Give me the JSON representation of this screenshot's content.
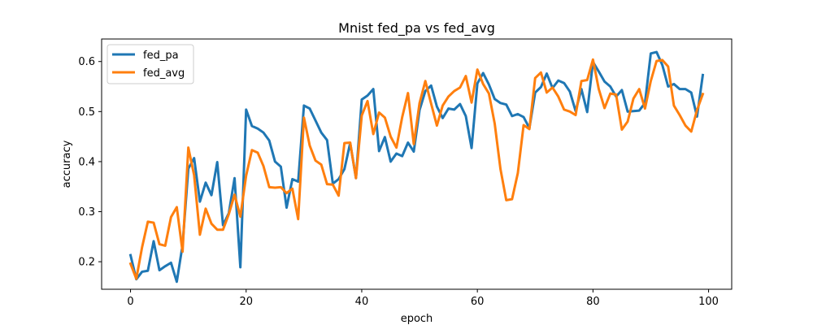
{
  "chart_data": {
    "type": "line",
    "title": "Mnist fed_pa vs fed_avg",
    "xlabel": "epoch",
    "ylabel": "accuracy",
    "xlim": [
      -5,
      104
    ],
    "ylim": [
      0.145,
      0.645
    ],
    "xticks": [
      0,
      20,
      40,
      60,
      80,
      100
    ],
    "yticks": [
      0.2,
      0.3,
      0.4,
      0.5,
      0.6
    ],
    "xtick_labels": [
      "0",
      "20",
      "40",
      "60",
      "80",
      "100"
    ],
    "ytick_labels": [
      "0.2",
      "0.3",
      "0.4",
      "0.5",
      "0.6"
    ],
    "grid": false,
    "legend_position": "top-left",
    "x": [
      0,
      1,
      2,
      3,
      4,
      5,
      6,
      7,
      8,
      9,
      10,
      11,
      12,
      13,
      14,
      15,
      16,
      17,
      18,
      19,
      20,
      21,
      22,
      23,
      24,
      25,
      26,
      27,
      28,
      29,
      30,
      31,
      32,
      33,
      34,
      35,
      36,
      37,
      38,
      39,
      40,
      41,
      42,
      43,
      44,
      45,
      46,
      47,
      48,
      49,
      50,
      51,
      52,
      53,
      54,
      55,
      56,
      57,
      58,
      59,
      60,
      61,
      62,
      63,
      64,
      65,
      66,
      67,
      68,
      69,
      70,
      71,
      72,
      73,
      74,
      75,
      76,
      77,
      78,
      79,
      80,
      81,
      82,
      83,
      84,
      85,
      86,
      87,
      88,
      89,
      90,
      91,
      92,
      93,
      94,
      95,
      96,
      97,
      98,
      99
    ],
    "series": [
      {
        "name": "fed_pa",
        "color": "#1f77b4",
        "values": [
          0.213,
          0.165,
          0.18,
          0.182,
          0.241,
          0.183,
          0.191,
          0.198,
          0.16,
          0.233,
          0.386,
          0.407,
          0.32,
          0.358,
          0.333,
          0.399,
          0.273,
          0.297,
          0.367,
          0.189,
          0.504,
          0.471,
          0.466,
          0.458,
          0.442,
          0.4,
          0.39,
          0.308,
          0.365,
          0.36,
          0.512,
          0.506,
          0.482,
          0.458,
          0.443,
          0.356,
          0.365,
          0.385,
          0.437,
          0.367,
          0.524,
          0.532,
          0.545,
          0.421,
          0.449,
          0.4,
          0.416,
          0.411,
          0.438,
          0.42,
          0.503,
          0.541,
          0.552,
          0.51,
          0.487,
          0.506,
          0.504,
          0.515,
          0.491,
          0.427,
          0.556,
          0.577,
          0.554,
          0.525,
          0.517,
          0.514,
          0.491,
          0.495,
          0.489,
          0.467,
          0.538,
          0.549,
          0.576,
          0.547,
          0.562,
          0.557,
          0.54,
          0.501,
          0.545,
          0.499,
          0.599,
          0.58,
          0.56,
          0.55,
          0.53,
          0.543,
          0.5,
          0.501,
          0.502,
          0.517,
          0.616,
          0.619,
          0.593,
          0.55,
          0.555,
          0.545,
          0.545,
          0.538,
          0.49,
          0.573
        ]
      },
      {
        "name": "fed_avg",
        "color": "#ff7f0e",
        "values": [
          0.196,
          0.166,
          0.229,
          0.28,
          0.278,
          0.235,
          0.232,
          0.289,
          0.309,
          0.22,
          0.428,
          0.373,
          0.254,
          0.306,
          0.276,
          0.264,
          0.264,
          0.295,
          0.334,
          0.29,
          0.372,
          0.423,
          0.418,
          0.391,
          0.349,
          0.348,
          0.349,
          0.337,
          0.346,
          0.285,
          0.488,
          0.432,
          0.402,
          0.394,
          0.355,
          0.354,
          0.332,
          0.437,
          0.438,
          0.367,
          0.492,
          0.521,
          0.455,
          0.498,
          0.488,
          0.45,
          0.428,
          0.489,
          0.537,
          0.435,
          0.517,
          0.561,
          0.516,
          0.472,
          0.512,
          0.53,
          0.541,
          0.548,
          0.571,
          0.518,
          0.584,
          0.555,
          0.536,
          0.476,
          0.385,
          0.323,
          0.325,
          0.377,
          0.473,
          0.465,
          0.567,
          0.578,
          0.538,
          0.548,
          0.53,
          0.504,
          0.5,
          0.493,
          0.561,
          0.563,
          0.604,
          0.545,
          0.507,
          0.536,
          0.534,
          0.464,
          0.48,
          0.526,
          0.545,
          0.506,
          0.561,
          0.601,
          0.603,
          0.59,
          0.512,
          0.493,
          0.472,
          0.46,
          0.503,
          0.535
        ]
      }
    ]
  }
}
